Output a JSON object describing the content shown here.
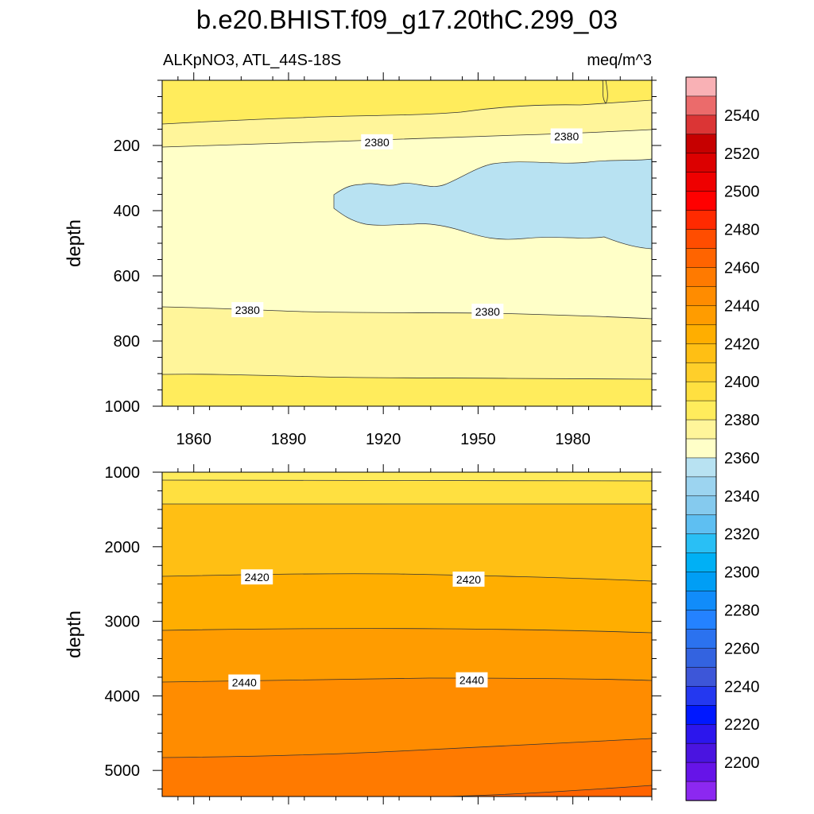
{
  "title": "b.e20.BHIST.f09_g17.20thC.299_03",
  "variable_label": "ALKpNO3, ATL_44S-18S",
  "units_label": "meq/m^3",
  "colorbar": {
    "labels": [
      "2540",
      "2520",
      "2500",
      "2480",
      "2460",
      "2440",
      "2420",
      "2400",
      "2380",
      "2360",
      "2340",
      "2320",
      "2300",
      "2280",
      "2260",
      "2240",
      "2220",
      "2200"
    ],
    "colors": [
      "#f9b1b5",
      "#eb6b6b",
      "#db3535",
      "#c60000",
      "#dc0000",
      "#ef0000",
      "#ff0000",
      "#ff2a00",
      "#ff4d00",
      "#ff6400",
      "#ff7a00",
      "#ff8c00",
      "#ff9c00",
      "#ffae00",
      "#ffbf14",
      "#ffcf2a",
      "#ffe040",
      "#ffec5c",
      "#fff59a",
      "#ffffc8",
      "#b8e2f2",
      "#9cd4f0",
      "#85caee",
      "#5ebff2",
      "#29bff5",
      "#00b0f5",
      "#009ef5",
      "#118cfa",
      "#2482ff",
      "#2b72ef",
      "#3363e0",
      "#3d56d8",
      "#2438f0",
      "#0018ff",
      "#2c16ed",
      "#4a14e0",
      "#6614e8",
      "#8c28f0"
    ]
  },
  "chart_data": [
    {
      "type": "contour",
      "panel": "upper",
      "ylabel": "depth",
      "xlim": [
        1850,
        2005
      ],
      "ylim": [
        1000,
        0
      ],
      "xticks": [
        "1860",
        "1890",
        "1920",
        "1950",
        "1980"
      ],
      "yticks": [
        "200",
        "400",
        "600",
        "800",
        "1000"
      ],
      "contour_labels": [
        {
          "text": "2380",
          "x": 1918,
          "y": 190
        },
        {
          "text": "2380",
          "x": 1978,
          "y": 172
        },
        {
          "text": "2380",
          "x": 1877,
          "y": 705
        },
        {
          "text": "2380",
          "x": 1953,
          "y": 710
        }
      ],
      "regions": [
        {
          "name": "2390-2400 top band",
          "value": 2395
        },
        {
          "name": "2380-2390",
          "value": 2385
        },
        {
          "name": "2370-2380",
          "value": 2375
        },
        {
          "name": "2360-2370 blue patch",
          "value": 2365
        },
        {
          "name": "2380-2390 lower",
          "value": 2385
        },
        {
          "name": "2390-2400 bottom",
          "value": 2395
        }
      ]
    },
    {
      "type": "contour",
      "panel": "lower",
      "ylabel": "depth",
      "xlim": [
        1850,
        2005
      ],
      "ylim": [
        5350,
        1000
      ],
      "yticks": [
        "1000",
        "2000",
        "3000",
        "4000",
        "5000"
      ],
      "contour_labels": [
        {
          "text": "2420",
          "x": 1880,
          "y": 2410
        },
        {
          "text": "2420",
          "x": 1947,
          "y": 2440
        },
        {
          "text": "2440",
          "x": 1876,
          "y": 3820
        },
        {
          "text": "2440",
          "x": 1948,
          "y": 3790
        }
      ],
      "regions": [
        {
          "name": "2400-2410",
          "value": 2405
        },
        {
          "name": "2410-2420",
          "value": 2415
        },
        {
          "name": "2420-2430",
          "value": 2425
        },
        {
          "name": "2430-2440",
          "value": 2435
        },
        {
          "name": "2440-2450",
          "value": 2445
        },
        {
          "name": "2450-2460",
          "value": 2455
        },
        {
          "name": "2460-2470",
          "value": 2465
        }
      ]
    }
  ]
}
